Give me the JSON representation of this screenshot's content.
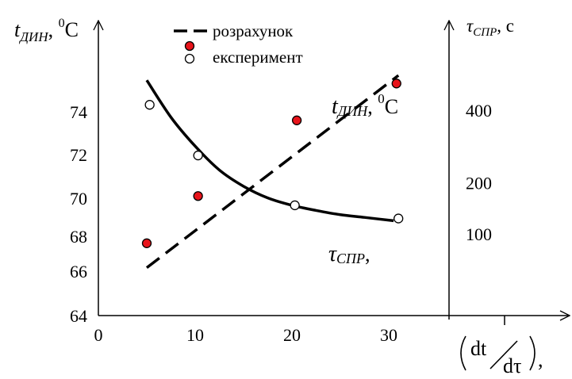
{
  "chart_data": {
    "type": "scatter",
    "x_axis": {
      "ticks": [
        "0",
        "10",
        "20",
        "30"
      ],
      "tick_values": [
        0,
        10,
        20,
        30
      ],
      "range": [
        0,
        40
      ]
    },
    "y_left": {
      "label": {
        "symbol": "t",
        "sub": "ДИН",
        "unit_sup": "0",
        "unit": "C"
      },
      "ticks": [
        "64",
        "66",
        "68",
        "70",
        "72",
        "74"
      ],
      "tick_values": [
        64,
        66,
        68,
        70,
        72,
        74
      ]
    },
    "y_right": {
      "label": {
        "symbol": "τ",
        "sub": "СПР",
        "unit": ", с"
      },
      "ticks": [
        "100",
        "200",
        "400"
      ],
      "tick_values": [
        100,
        200,
        400
      ]
    },
    "xlabel": {
      "num": "dt",
      "den": "dτ",
      "suffix": ","
    },
    "legend": {
      "placement": "top-center",
      "items": [
        {
          "kind": "dashed-line",
          "label": "розрахунок"
        },
        {
          "kind": "filled-circle",
          "label": "експеримент",
          "color": "#e8141b"
        },
        {
          "kind": "open-circle",
          "label": ""
        }
      ]
    },
    "series": [
      {
        "name": "t_ДИН",
        "axis": "left",
        "label": {
          "symbol": "t",
          "sub": "ДИН",
          "unit_sup": "0",
          "unit": "C"
        },
        "calculated": {
          "style": "dashed",
          "x": [
            5,
            31
          ],
          "y": [
            66.2,
            75.8
          ]
        },
        "experiment": {
          "marker": "filled",
          "color": "#e8141b",
          "x": [
            5,
            10.3,
            20.5,
            30.8
          ],
          "y": [
            67.6,
            70.1,
            73.6,
            75.4
          ]
        }
      },
      {
        "name": "τ_СПР",
        "axis": "right",
        "label": {
          "symbol": "τ",
          "sub": "СПР",
          "suffix": ","
        },
        "calculated": {
          "style": "solid",
          "x": [
            5,
            7.5,
            10,
            12.5,
            15,
            17.5,
            20,
            22.5,
            25,
            27.5,
            30.5
          ],
          "y": [
            500,
            375,
            290,
            228,
            190,
            165,
            150,
            140,
            132,
            127,
            121
          ]
        },
        "experiment": {
          "marker": "open",
          "x": [
            5.3,
            10.3,
            20.3,
            31
          ],
          "y": [
            415,
            265,
            150,
            125
          ]
        }
      }
    ],
    "colors": {
      "experiment_fill": "#e8141b",
      "line": "#000000"
    }
  }
}
